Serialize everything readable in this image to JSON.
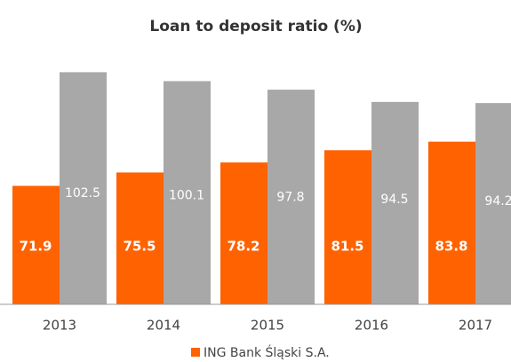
{
  "chart_data": {
    "type": "bar",
    "title": "Loan to deposit ratio (%)",
    "categories": [
      "2013",
      "2014",
      "2015",
      "2016",
      "2017"
    ],
    "series": [
      {
        "name": "ING Bank Śląski S.A.",
        "color": "#ff6200",
        "values": [
          71.9,
          75.5,
          78.2,
          81.5,
          83.8
        ]
      },
      {
        "color": "#a8a8a8",
        "values": [
          102.5,
          100.1,
          97.8,
          94.5,
          94.2
        ]
      }
    ],
    "ylim": [
      40,
      110
    ],
    "legend": "bottom"
  }
}
